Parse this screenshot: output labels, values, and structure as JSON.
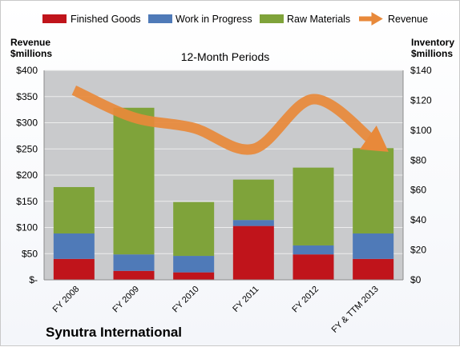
{
  "chart_data": {
    "type": "bar",
    "subtitle": "12-Month Periods",
    "company": "Synutra International",
    "categories": [
      "FY 2008",
      "FY 2009",
      "FY 2010",
      "FY 2011",
      "FY 2012",
      "FY & TTM 2013"
    ],
    "left_axis": {
      "title_line1": "Revenue",
      "title_line2": "$millions",
      "ylim": [
        0,
        400
      ],
      "ticks": [
        {
          "v": 0,
          "label": "$-"
        },
        {
          "v": 50,
          "label": "$50"
        },
        {
          "v": 100,
          "label": "$100"
        },
        {
          "v": 150,
          "label": "$150"
        },
        {
          "v": 200,
          "label": "$200"
        },
        {
          "v": 250,
          "label": "$250"
        },
        {
          "v": 300,
          "label": "$300"
        },
        {
          "v": 350,
          "label": "$350"
        },
        {
          "v": 400,
          "label": "$400"
        }
      ]
    },
    "right_axis": {
      "title_line1": "Inventory",
      "title_line2": "$millions",
      "ylim": [
        0,
        140
      ],
      "ticks": [
        {
          "v": 0,
          "label": "$0"
        },
        {
          "v": 20,
          "label": "$20"
        },
        {
          "v": 40,
          "label": "$40"
        },
        {
          "v": 60,
          "label": "$60"
        },
        {
          "v": 80,
          "label": "$80"
        },
        {
          "v": 100,
          "label": "$100"
        },
        {
          "v": 120,
          "label": "$120"
        },
        {
          "v": 140,
          "label": "$140"
        }
      ]
    },
    "series": [
      {
        "name": "Finished Goods",
        "color": "#c0141b",
        "axis": "right",
        "values": [
          14,
          6,
          5,
          36,
          17,
          14
        ]
      },
      {
        "name": "Work in Progress",
        "color": "#4f7ab8",
        "axis": "right",
        "values": [
          17,
          11,
          11,
          4,
          6,
          17
        ]
      },
      {
        "name": "Raw Materials",
        "color": "#7fa33a",
        "axis": "right",
        "values": [
          31,
          98,
          36,
          27,
          52,
          57
        ]
      },
      {
        "name": "Revenue",
        "color": "#e8893a",
        "axis": "left",
        "kind": "line",
        "values": [
          362,
          310,
          290,
          250,
          345,
          265
        ]
      }
    ],
    "grid": true,
    "legend_position": "top"
  }
}
